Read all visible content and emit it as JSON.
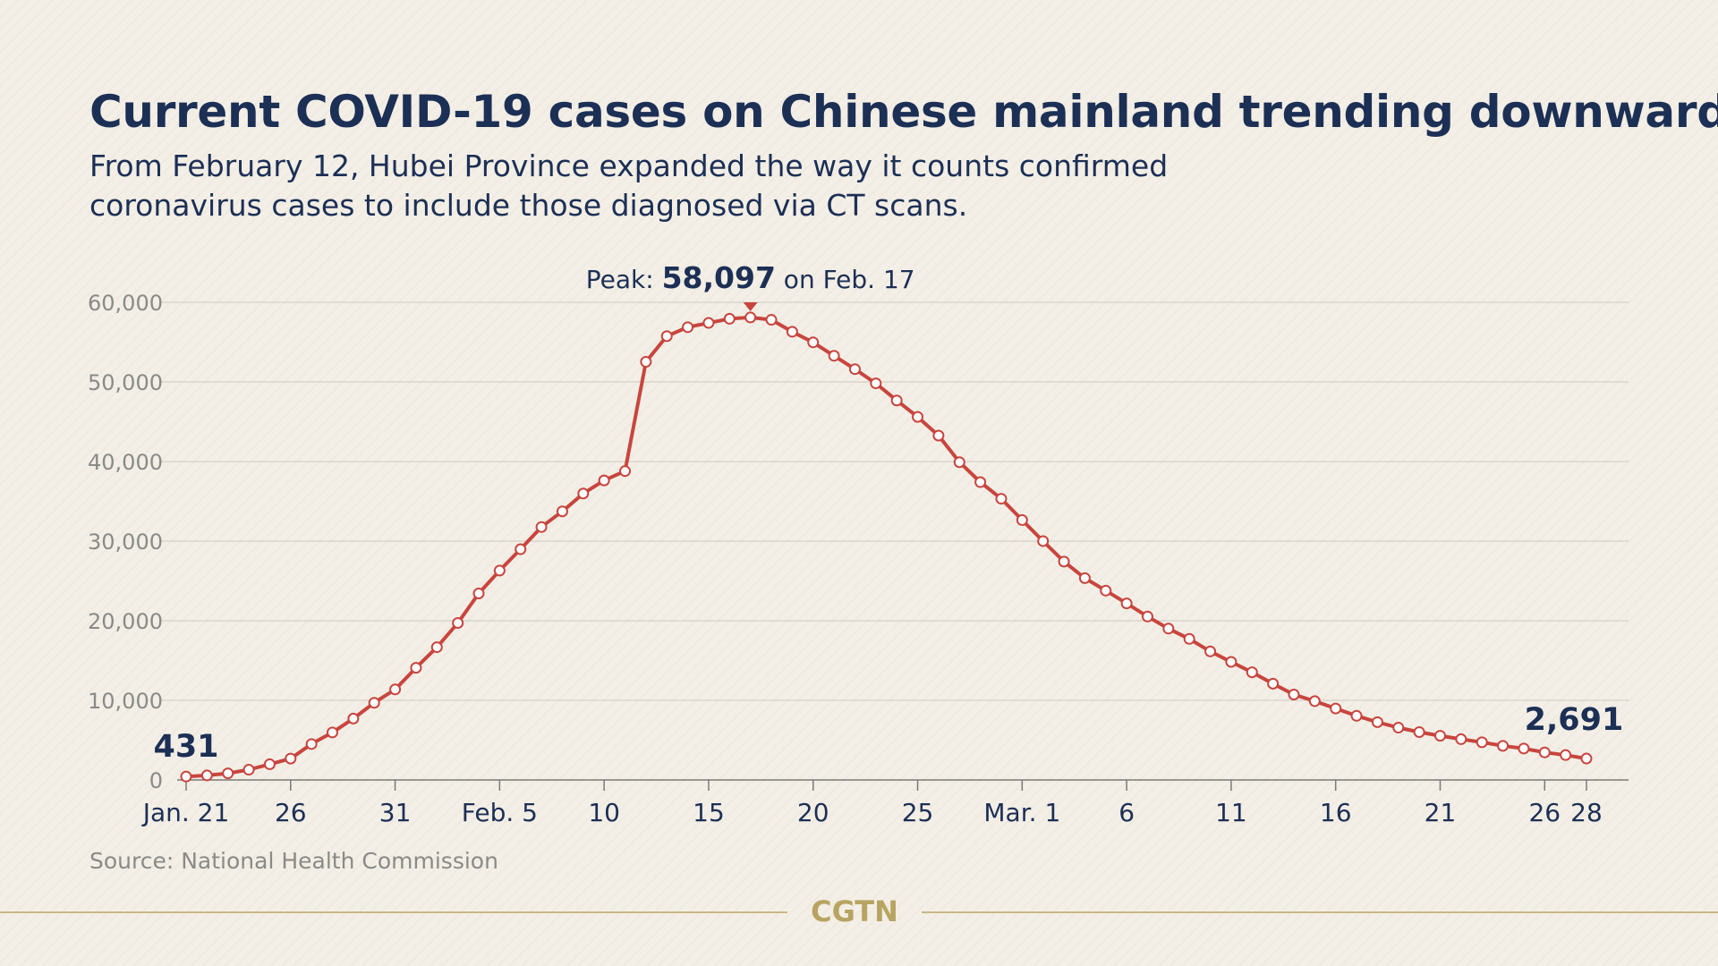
{
  "header": {
    "title": "Current COVID-19 cases on Chinese mainland trending downward",
    "subtitle_lines": [
      "From February 12, Hubei Province expanded the way it counts confirmed",
      "coronavirus cases to include those diagnosed via CT scans."
    ]
  },
  "annotations": {
    "peak_prefix": "Peak: ",
    "peak_value": "58,097",
    "peak_suffix": " on Feb. 17",
    "start_label": "431",
    "end_label": "2,691"
  },
  "footer": {
    "source": "Source: National Health Commission",
    "logo": "CGTN"
  },
  "colors": {
    "line": "#c8453e",
    "text_dark": "#1c2f55",
    "axis_text": "#8a8a86",
    "gridline": "#d5d0c6",
    "gold": "#b8a462",
    "background": "#f3efe6"
  },
  "chart_data": {
    "type": "line",
    "title": "Current COVID-19 cases on Chinese mainland trending downward",
    "xlabel": "",
    "ylabel": "",
    "ylim": [
      0,
      60000
    ],
    "grid": true,
    "y_ticks": [
      0,
      10000,
      20000,
      30000,
      40000,
      50000,
      60000
    ],
    "y_tick_labels": [
      "0",
      "10,000",
      "20,000",
      "30,000",
      "40,000",
      "50,000",
      "60,000"
    ],
    "x_tick_labels": [
      {
        "date": "2020-01-21",
        "label": "Jan. 21"
      },
      {
        "date": "2020-01-26",
        "label": "26"
      },
      {
        "date": "2020-01-31",
        "label": "31"
      },
      {
        "date": "2020-02-05",
        "label": "Feb. 5"
      },
      {
        "date": "2020-02-10",
        "label": "10"
      },
      {
        "date": "2020-02-15",
        "label": "15"
      },
      {
        "date": "2020-02-20",
        "label": "20"
      },
      {
        "date": "2020-02-25",
        "label": "25"
      },
      {
        "date": "2020-03-01",
        "label": "Mar. 1"
      },
      {
        "date": "2020-03-06",
        "label": "6"
      },
      {
        "date": "2020-03-11",
        "label": "11"
      },
      {
        "date": "2020-03-16",
        "label": "16"
      },
      {
        "date": "2020-03-21",
        "label": "21"
      },
      {
        "date": "2020-03-26",
        "label": "26"
      },
      {
        "date": "2020-03-28",
        "label": "28"
      }
    ],
    "x": [
      "2020-01-21",
      "2020-01-22",
      "2020-01-23",
      "2020-01-24",
      "2020-01-25",
      "2020-01-26",
      "2020-01-27",
      "2020-01-28",
      "2020-01-29",
      "2020-01-30",
      "2020-01-31",
      "2020-02-01",
      "2020-02-02",
      "2020-02-03",
      "2020-02-04",
      "2020-02-05",
      "2020-02-06",
      "2020-02-07",
      "2020-02-08",
      "2020-02-09",
      "2020-02-10",
      "2020-02-11",
      "2020-02-12",
      "2020-02-13",
      "2020-02-14",
      "2020-02-15",
      "2020-02-16",
      "2020-02-17",
      "2020-02-18",
      "2020-02-19",
      "2020-02-20",
      "2020-02-21",
      "2020-02-22",
      "2020-02-23",
      "2020-02-24",
      "2020-02-25",
      "2020-02-26",
      "2020-02-27",
      "2020-02-28",
      "2020-02-29",
      "2020-03-01",
      "2020-03-02",
      "2020-03-03",
      "2020-03-04",
      "2020-03-05",
      "2020-03-06",
      "2020-03-07",
      "2020-03-08",
      "2020-03-09",
      "2020-03-10",
      "2020-03-11",
      "2020-03-12",
      "2020-03-13",
      "2020-03-14",
      "2020-03-15",
      "2020-03-16",
      "2020-03-17",
      "2020-03-18",
      "2020-03-19",
      "2020-03-20",
      "2020-03-21",
      "2020-03-22",
      "2020-03-23",
      "2020-03-24",
      "2020-03-25",
      "2020-03-26",
      "2020-03-27",
      "2020-03-28"
    ],
    "series": [
      {
        "values": [
          431,
          571,
          830,
          1287,
          1975,
          2684,
          4515,
          5970,
          7711,
          9692,
          11372,
          14089,
          16678,
          19720,
          23430,
          26302,
          28985,
          31774,
          33738,
          35982,
          37626,
          38800,
          52526,
          55748,
          56873,
          57416,
          57934,
          58097,
          57805,
          56303,
          54965,
          53284,
          51606,
          49824,
          47672,
          45604,
          43258,
          39919,
          37414,
          35329,
          32652,
          30004,
          27433,
          25352,
          23784,
          22177,
          20533,
          19016,
          17721,
          16145,
          14831,
          13526,
          12094,
          10734,
          9898,
          8976,
          8056,
          7263,
          6569,
          6013,
          5549,
          5120,
          4735,
          4287,
          3947,
          3460,
          3128,
          2691
        ]
      }
    ],
    "annotations": [
      {
        "date": "2020-02-17",
        "value": 58097,
        "text": "Peak: 58,097 on Feb. 17"
      },
      {
        "date": "2020-01-21",
        "value": 431,
        "text": "431"
      },
      {
        "date": "2020-03-28",
        "value": 2691,
        "text": "2,691"
      }
    ]
  }
}
